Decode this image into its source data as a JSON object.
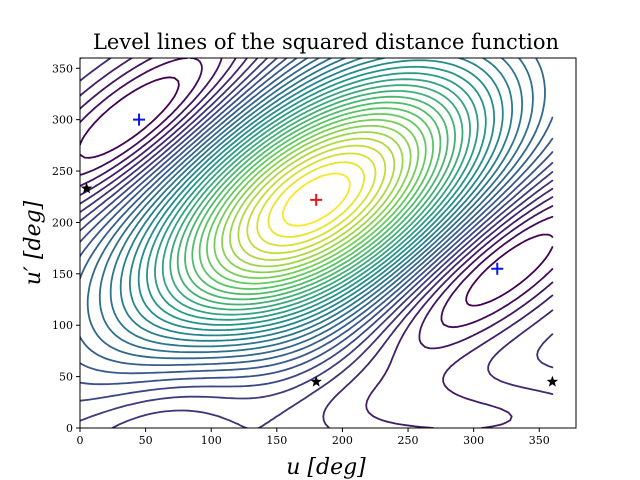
{
  "chart_data": {
    "type": "contour",
    "title": "Level lines of the squared distance function",
    "xlabel": "u [deg]",
    "ylabel": "u′ [deg]",
    "xlim": [
      0,
      378
    ],
    "ylim": [
      0,
      360
    ],
    "xticks": [
      0,
      50,
      100,
      150,
      200,
      250,
      300,
      350
    ],
    "yticks": [
      0,
      50,
      100,
      150,
      200,
      250,
      300,
      350
    ],
    "colormap": "viridis",
    "contour_levels": 34,
    "grid": false,
    "legend": "none",
    "field": {
      "global_maximum": [
        180,
        222
      ],
      "local_minima": [
        [
          45,
          300
        ],
        [
          318,
          155
        ]
      ],
      "saddle_points": [
        [
          5,
          233
        ],
        [
          180,
          45
        ],
        [
          360,
          45
        ]
      ]
    },
    "markers": [
      {
        "kind": "max",
        "symbol": "+",
        "color": "#e8141c",
        "x": 180,
        "y": 222
      },
      {
        "kind": "min",
        "symbol": "+",
        "color": "#0b18e0",
        "x": 45,
        "y": 300
      },
      {
        "kind": "min",
        "symbol": "+",
        "color": "#0b18e0",
        "x": 318,
        "y": 155
      },
      {
        "kind": "saddle",
        "symbol": "★",
        "color": "#000000",
        "x": 5,
        "y": 233
      },
      {
        "kind": "saddle",
        "symbol": "★",
        "color": "#000000",
        "x": 180,
        "y": 45
      },
      {
        "kind": "saddle",
        "symbol": "★",
        "color": "#000000",
        "x": 360,
        "y": 45
      }
    ]
  }
}
